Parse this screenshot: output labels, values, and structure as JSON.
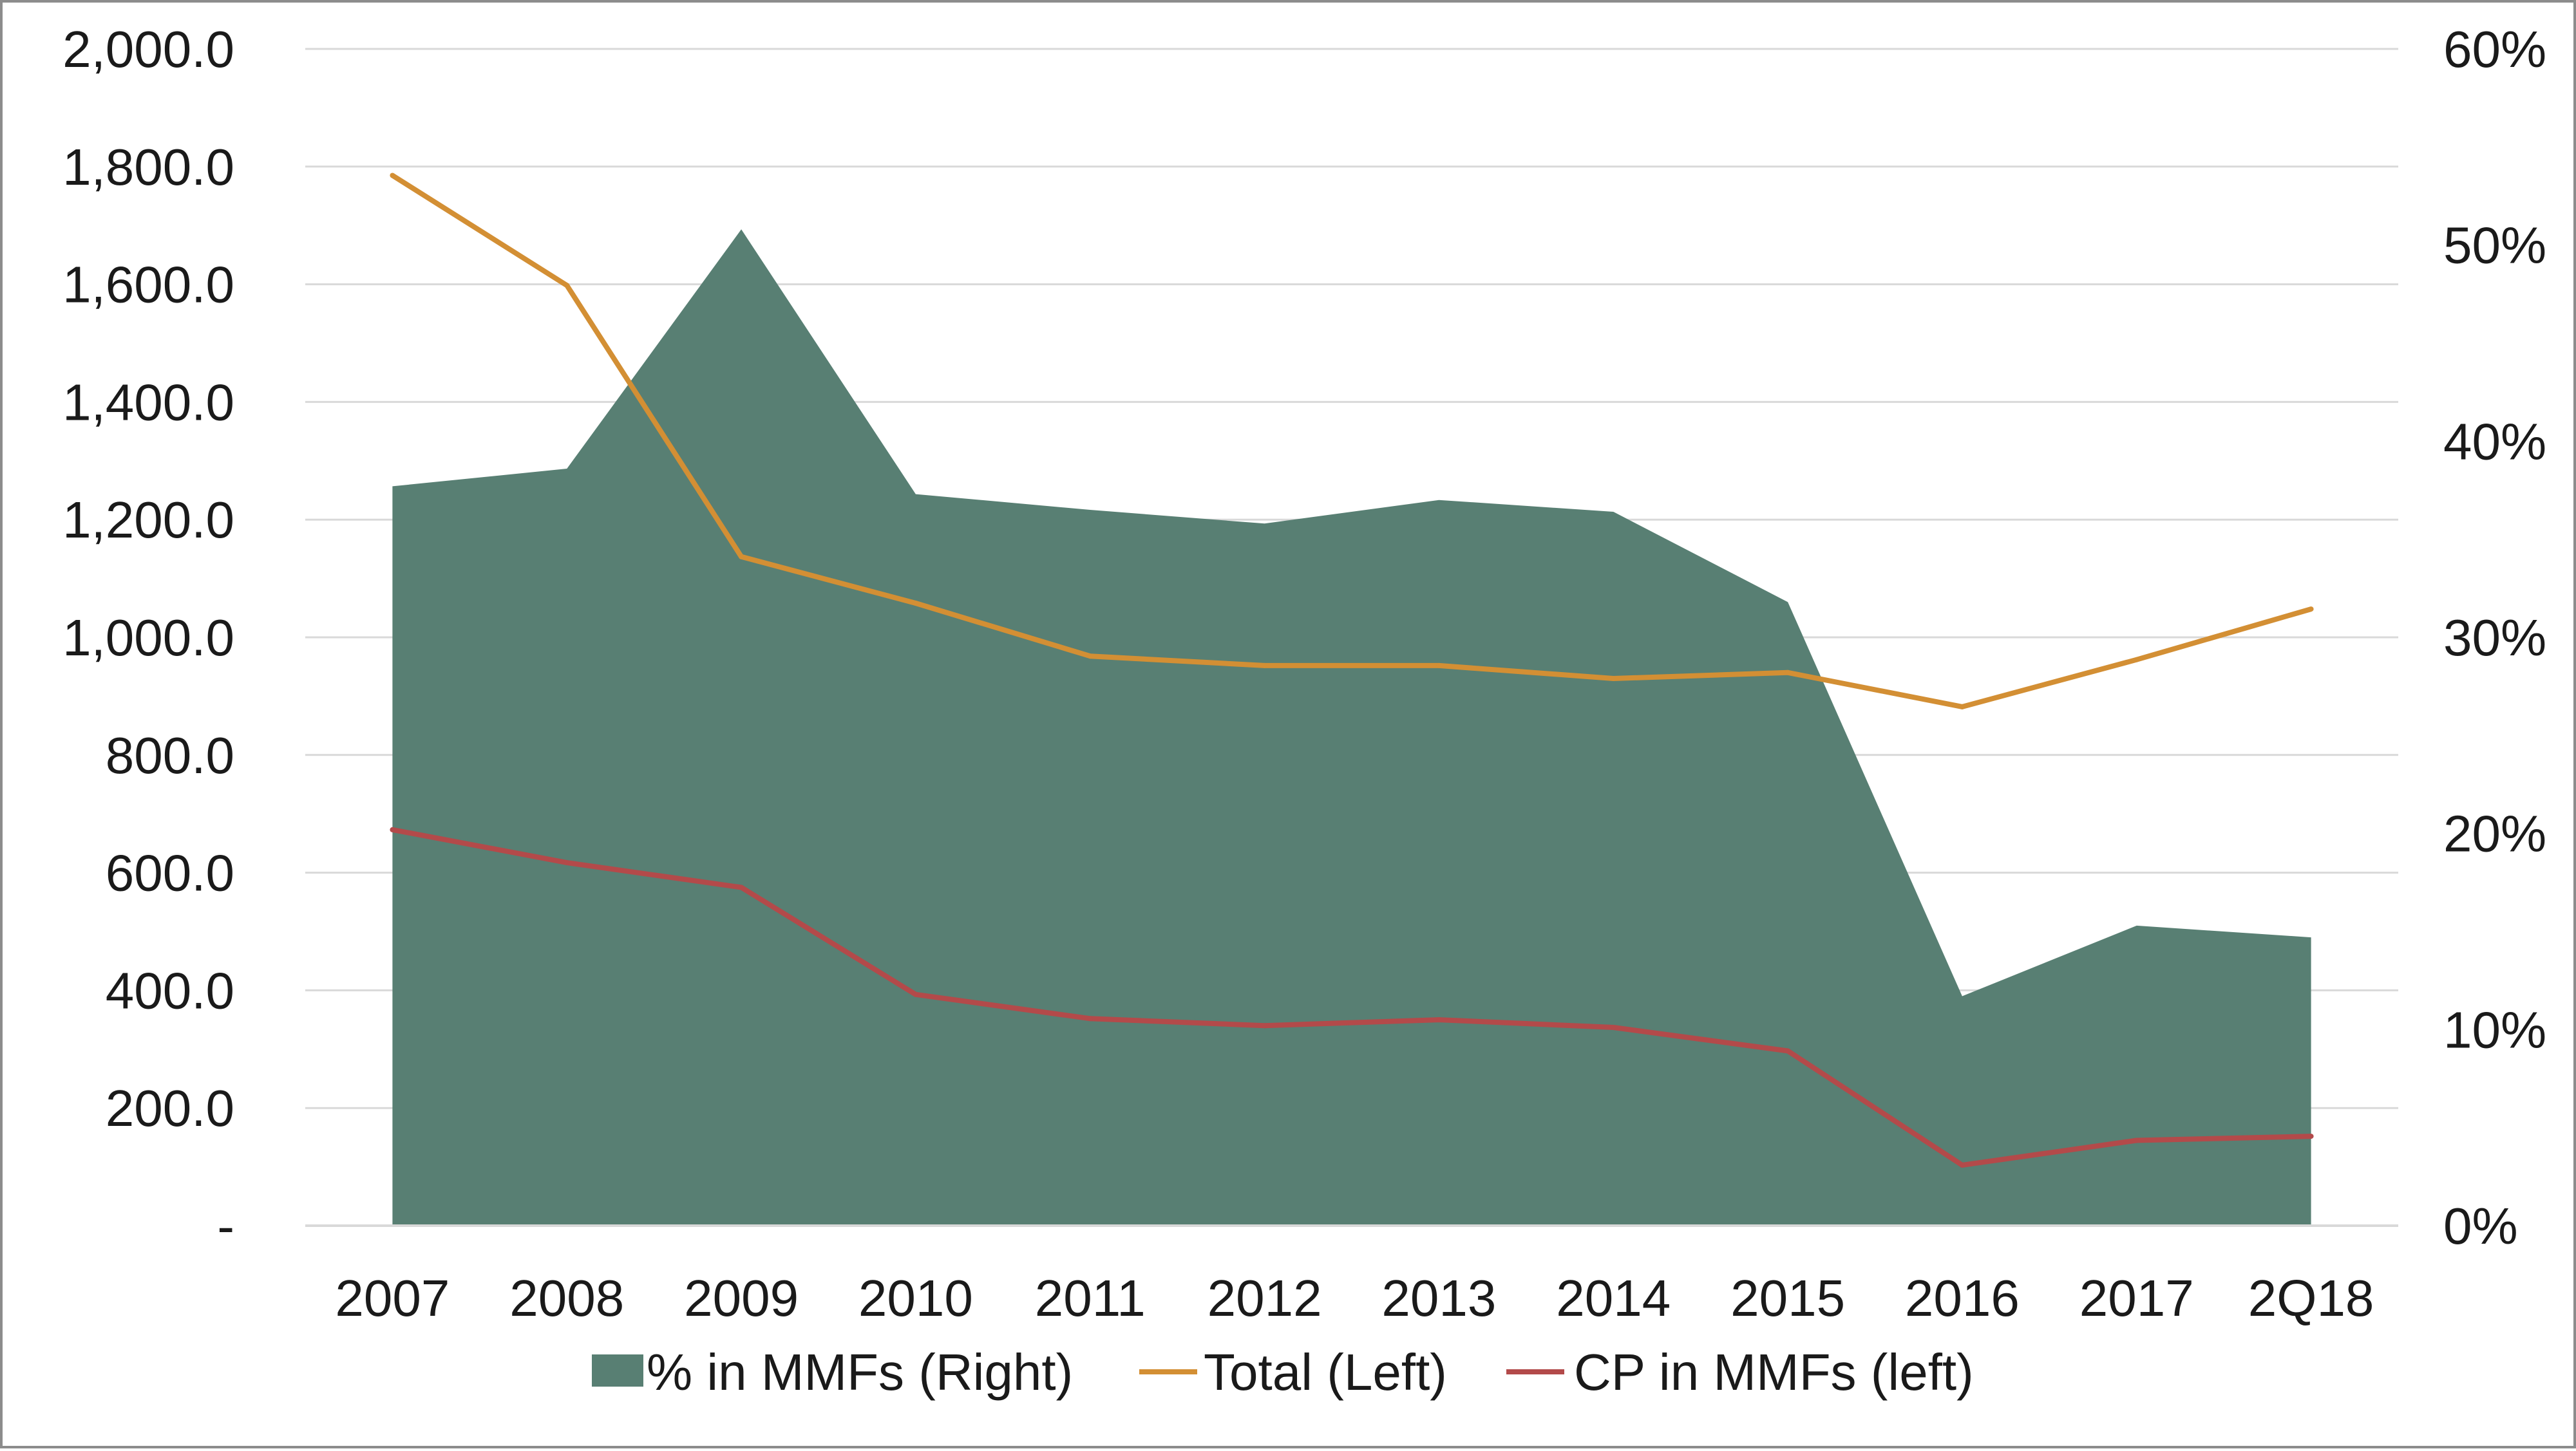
{
  "chart_data": {
    "type": "line",
    "categories": [
      "2007",
      "2008",
      "2009",
      "2010",
      "2011",
      "2012",
      "2013",
      "2014",
      "2015",
      "2016",
      "2017",
      "2Q18"
    ],
    "series": [
      {
        "name": "% in MMFs (Right)",
        "kind": "area",
        "axis": "right",
        "color": "#587f73",
        "values": [
          37.7,
          38.6,
          50.8,
          37.3,
          36.5,
          35.8,
          37.0,
          36.4,
          31.8,
          11.7,
          15.3,
          14.7
        ]
      },
      {
        "name": "Total (Left)",
        "kind": "line",
        "axis": "left",
        "color": "#d38f34",
        "values": [
          1785,
          1598,
          1137,
          1058,
          968,
          952,
          952,
          930,
          940,
          882,
          962,
          1048
        ]
      },
      {
        "name": "CP in MMFs (left)",
        "kind": "line",
        "axis": "left",
        "color": "#b34a4a",
        "values": [
          673,
          617,
          575,
          393,
          352,
          340,
          350,
          337,
          297,
          103,
          145,
          152
        ]
      }
    ],
    "y_left": {
      "range": [
        0,
        2000
      ],
      "ticks": [
        0,
        200,
        400,
        600,
        800,
        1000,
        1200,
        1400,
        1600,
        1800,
        2000
      ],
      "tick_labels": [
        "-",
        "200.0",
        "400.0",
        "600.0",
        "800.0",
        "1,000.0",
        "1,200.0",
        "1,400.0",
        "1,600.0",
        "1,800.0",
        "2,000.0"
      ]
    },
    "y_right": {
      "range": [
        0,
        60
      ],
      "ticks": [
        0,
        10,
        20,
        30,
        40,
        50,
        60
      ],
      "tick_labels": [
        "0%",
        "10%",
        "20%",
        "30%",
        "40%",
        "50%",
        "60%"
      ]
    },
    "grid": true,
    "legend": "bottom",
    "title": "",
    "xlabel": "",
    "ylabel": ""
  }
}
